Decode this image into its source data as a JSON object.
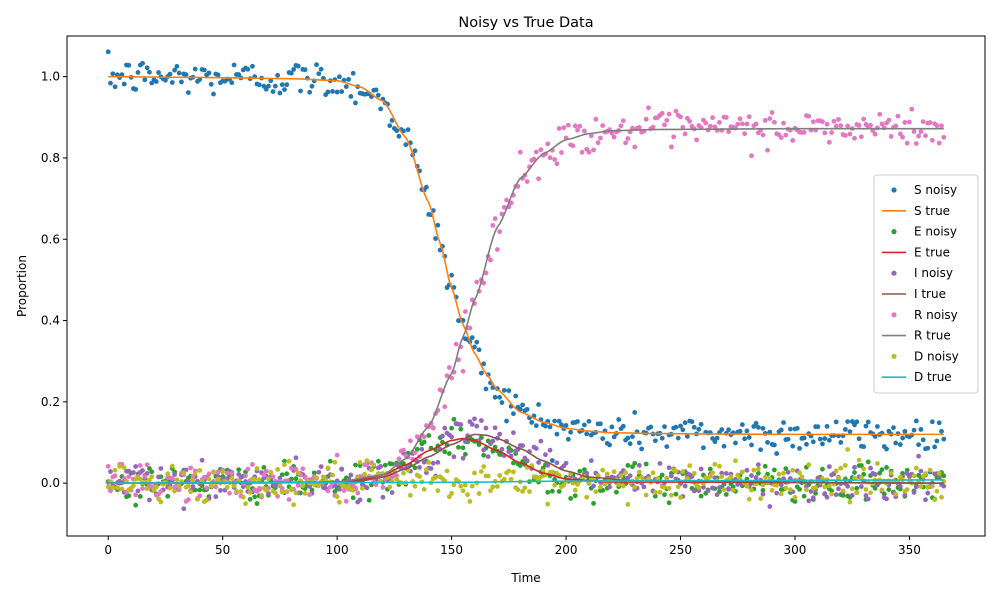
{
  "chart_data": {
    "type": "scatter",
    "title": "Noisy vs True Data",
    "xlabel": "Time",
    "ylabel": "Proportion",
    "xlim": [
      -18,
      383
    ],
    "ylim": [
      -0.13,
      1.1
    ],
    "xticks": [
      0,
      50,
      100,
      150,
      200,
      250,
      300,
      350
    ],
    "xtick_labels": [
      "0",
      "50",
      "100",
      "150",
      "200",
      "250",
      "300",
      "350"
    ],
    "yticks": [
      0.0,
      0.2,
      0.4,
      0.6,
      0.8,
      1.0
    ],
    "ytick_labels": [
      "0.0",
      "0.2",
      "0.4",
      "0.6",
      "0.8",
      "1.0"
    ],
    "grid": false,
    "legend_position": "right",
    "time_range": [
      0,
      365
    ],
    "series": [
      {
        "name": "S",
        "color": "#1f77b4",
        "true_color": "#ff7f0e",
        "true_points": [
          [
            0,
            1.0
          ],
          [
            40,
            0.998
          ],
          [
            80,
            0.995
          ],
          [
            100,
            0.99
          ],
          [
            110,
            0.975
          ],
          [
            120,
            0.94
          ],
          [
            130,
            0.85
          ],
          [
            140,
            0.69
          ],
          [
            145,
            0.59
          ],
          [
            150,
            0.48
          ],
          [
            155,
            0.39
          ],
          [
            160,
            0.32
          ],
          [
            165,
            0.27
          ],
          [
            170,
            0.23
          ],
          [
            180,
            0.175
          ],
          [
            190,
            0.15
          ],
          [
            200,
            0.135
          ],
          [
            210,
            0.128
          ],
          [
            220,
            0.124
          ],
          [
            240,
            0.122
          ],
          [
            260,
            0.121
          ],
          [
            300,
            0.12
          ],
          [
            365,
            0.12
          ]
        ],
        "noise_sd": 0.022
      },
      {
        "name": "E",
        "color": "#2ca02c",
        "true_color": "#d62728",
        "true_points": [
          [
            0,
            0.0
          ],
          [
            80,
            0.001
          ],
          [
            100,
            0.003
          ],
          [
            110,
            0.008
          ],
          [
            120,
            0.02
          ],
          [
            130,
            0.045
          ],
          [
            140,
            0.08
          ],
          [
            150,
            0.105
          ],
          [
            155,
            0.11
          ],
          [
            160,
            0.105
          ],
          [
            170,
            0.08
          ],
          [
            180,
            0.05
          ],
          [
            190,
            0.025
          ],
          [
            200,
            0.01
          ],
          [
            220,
            0.003
          ],
          [
            365,
            0.0
          ]
        ],
        "noise_sd": 0.022
      },
      {
        "name": "I",
        "color": "#9467bd",
        "true_color": "#8c564b",
        "true_points": [
          [
            0,
            0.0
          ],
          [
            90,
            0.001
          ],
          [
            110,
            0.005
          ],
          [
            120,
            0.015
          ],
          [
            130,
            0.035
          ],
          [
            140,
            0.065
          ],
          [
            150,
            0.095
          ],
          [
            160,
            0.12
          ],
          [
            165,
            0.118
          ],
          [
            170,
            0.11
          ],
          [
            180,
            0.085
          ],
          [
            190,
            0.055
          ],
          [
            200,
            0.03
          ],
          [
            210,
            0.015
          ],
          [
            230,
            0.005
          ],
          [
            365,
            0.0
          ]
        ],
        "noise_sd": 0.022
      },
      {
        "name": "R",
        "color": "#e377c2",
        "true_color": "#7f7f7f",
        "true_points": [
          [
            0,
            0.0
          ],
          [
            100,
            0.003
          ],
          [
            120,
            0.02
          ],
          [
            130,
            0.06
          ],
          [
            140,
            0.14
          ],
          [
            150,
            0.27
          ],
          [
            155,
            0.36
          ],
          [
            160,
            0.45
          ],
          [
            170,
            0.63
          ],
          [
            180,
            0.75
          ],
          [
            190,
            0.81
          ],
          [
            200,
            0.845
          ],
          [
            210,
            0.86
          ],
          [
            220,
            0.867
          ],
          [
            240,
            0.87
          ],
          [
            300,
            0.872
          ],
          [
            365,
            0.872
          ]
        ],
        "noise_sd": 0.022
      },
      {
        "name": "D",
        "color": "#bcbd22",
        "true_color": "#17becf",
        "true_points": [
          [
            0,
            0.0
          ],
          [
            150,
            0.002
          ],
          [
            200,
            0.005
          ],
          [
            365,
            0.008
          ]
        ],
        "noise_sd": 0.022
      }
    ],
    "legend": [
      {
        "label": "S noisy",
        "kind": "marker",
        "color": "#1f77b4"
      },
      {
        "label": "S true",
        "kind": "line",
        "color": "#ff7f0e"
      },
      {
        "label": "E noisy",
        "kind": "marker",
        "color": "#2ca02c"
      },
      {
        "label": "E true",
        "kind": "line",
        "color": "#d62728"
      },
      {
        "label": "I noisy",
        "kind": "marker",
        "color": "#9467bd"
      },
      {
        "label": "I true",
        "kind": "line",
        "color": "#8c564b"
      },
      {
        "label": "R noisy",
        "kind": "marker",
        "color": "#e377c2"
      },
      {
        "label": "R true",
        "kind": "line",
        "color": "#7f7f7f"
      },
      {
        "label": "D noisy",
        "kind": "marker",
        "color": "#bcbd22"
      },
      {
        "label": "D true",
        "kind": "line",
        "color": "#17becf"
      }
    ]
  }
}
